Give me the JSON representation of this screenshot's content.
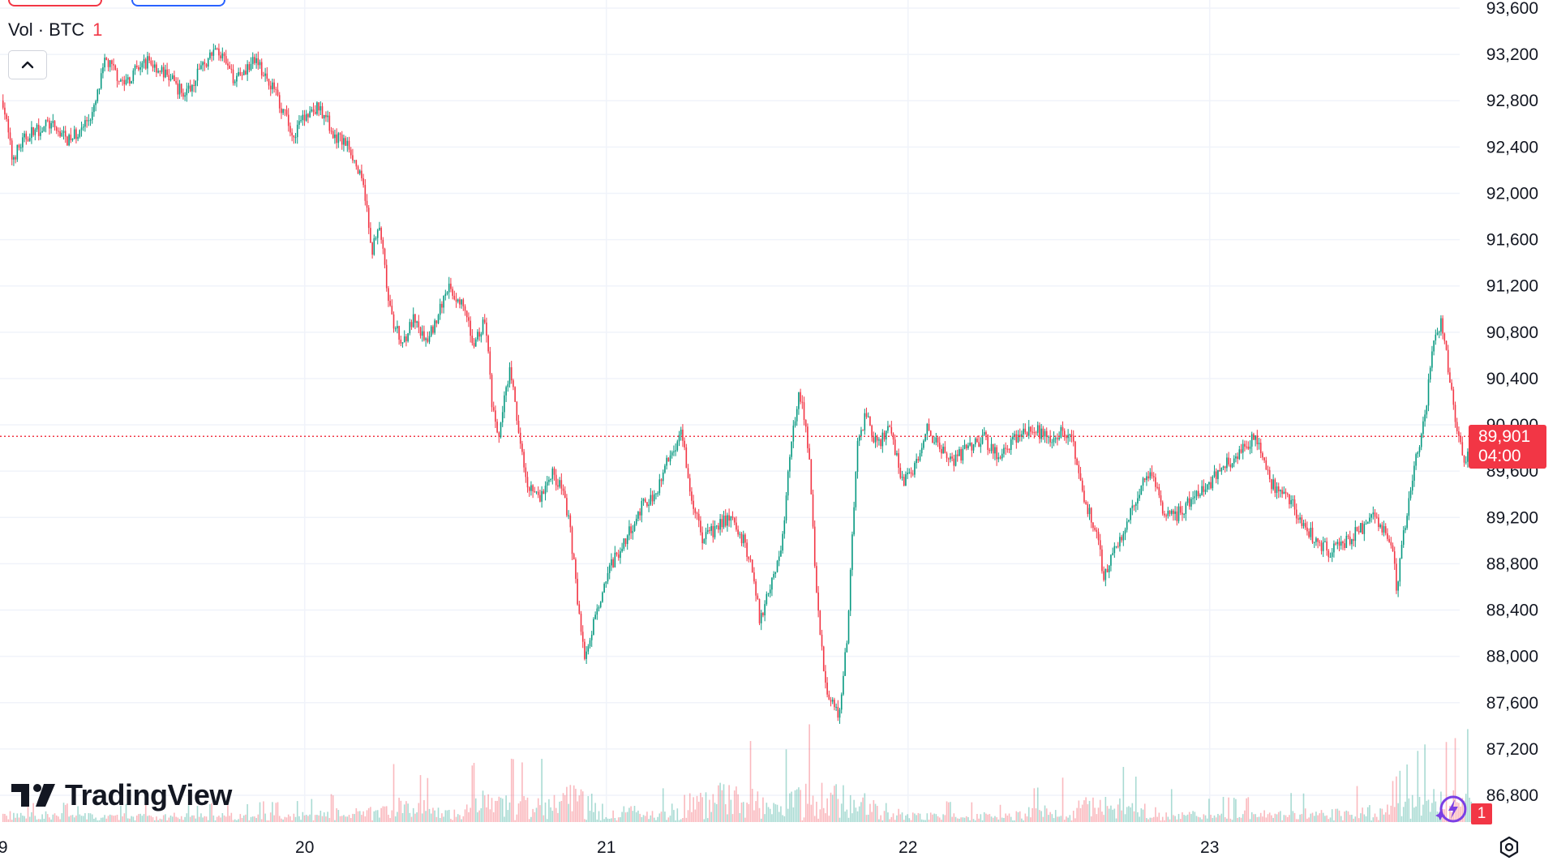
{
  "chart_data": {
    "type": "candlestick",
    "symbol": "BTC",
    "legend_label": "Vol · BTC",
    "legend_count": "1",
    "ylim": [
      86600,
      93600
    ],
    "y_ticks": [
      "86,800",
      "87,200",
      "87,600",
      "88,000",
      "88,400",
      "88,800",
      "89,200",
      "89,600",
      "90,000",
      "90,400",
      "90,800",
      "91,200",
      "91,600",
      "92,000",
      "92,400",
      "92,800",
      "93,200",
      "93,600"
    ],
    "x_ticks": [
      {
        "label": "9",
        "day": 19
      },
      {
        "label": "20",
        "day": 20
      },
      {
        "label": "21",
        "day": 21
      },
      {
        "label": "22",
        "day": 22
      },
      {
        "label": "23",
        "day": 23
      }
    ],
    "x_range_days": [
      19.0,
      23.95
    ],
    "grid": true,
    "current_price": "89,901",
    "countdown": "04:00",
    "current_price_value": 89901,
    "price_path": [
      {
        "day": 19.0,
        "price": 92800
      },
      {
        "day": 19.03,
        "price": 92300
      },
      {
        "day": 19.08,
        "price": 92500
      },
      {
        "day": 19.15,
        "price": 92600
      },
      {
        "day": 19.22,
        "price": 92450
      },
      {
        "day": 19.3,
        "price": 92700
      },
      {
        "day": 19.34,
        "price": 93150
      },
      {
        "day": 19.4,
        "price": 92950
      },
      {
        "day": 19.48,
        "price": 93150
      },
      {
        "day": 19.55,
        "price": 93000
      },
      {
        "day": 19.6,
        "price": 92850
      },
      {
        "day": 19.66,
        "price": 93100
      },
      {
        "day": 19.71,
        "price": 93250
      },
      {
        "day": 19.76,
        "price": 93000
      },
      {
        "day": 19.84,
        "price": 93150
      },
      {
        "day": 19.9,
        "price": 92900
      },
      {
        "day": 19.96,
        "price": 92500
      },
      {
        "day": 20.0,
        "price": 92650
      },
      {
        "day": 20.05,
        "price": 92750
      },
      {
        "day": 20.1,
        "price": 92500
      },
      {
        "day": 20.15,
        "price": 92400
      },
      {
        "day": 20.2,
        "price": 92000
      },
      {
        "day": 20.22,
        "price": 91500
      },
      {
        "day": 20.25,
        "price": 91700
      },
      {
        "day": 20.28,
        "price": 91000
      },
      {
        "day": 20.32,
        "price": 90700
      },
      {
        "day": 20.36,
        "price": 90900
      },
      {
        "day": 20.4,
        "price": 90700
      },
      {
        "day": 20.45,
        "price": 91000
      },
      {
        "day": 20.47,
        "price": 91200
      },
      {
        "day": 20.52,
        "price": 91050
      },
      {
        "day": 20.56,
        "price": 90700
      },
      {
        "day": 20.6,
        "price": 90900
      },
      {
        "day": 20.62,
        "price": 90200
      },
      {
        "day": 20.64,
        "price": 89850
      },
      {
        "day": 20.68,
        "price": 90500
      },
      {
        "day": 20.71,
        "price": 89900
      },
      {
        "day": 20.74,
        "price": 89500
      },
      {
        "day": 20.78,
        "price": 89350
      },
      {
        "day": 20.82,
        "price": 89600
      },
      {
        "day": 20.86,
        "price": 89400
      },
      {
        "day": 20.88,
        "price": 89100
      },
      {
        "day": 20.9,
        "price": 88600
      },
      {
        "day": 20.93,
        "price": 87950
      },
      {
        "day": 20.96,
        "price": 88300
      },
      {
        "day": 21.0,
        "price": 88700
      },
      {
        "day": 21.04,
        "price": 88900
      },
      {
        "day": 21.08,
        "price": 89100
      },
      {
        "day": 21.12,
        "price": 89300
      },
      {
        "day": 21.16,
        "price": 89400
      },
      {
        "day": 21.19,
        "price": 89600
      },
      {
        "day": 21.25,
        "price": 89950
      },
      {
        "day": 21.28,
        "price": 89400
      },
      {
        "day": 21.32,
        "price": 89000
      },
      {
        "day": 21.36,
        "price": 89100
      },
      {
        "day": 21.4,
        "price": 89200
      },
      {
        "day": 21.44,
        "price": 89100
      },
      {
        "day": 21.48,
        "price": 88800
      },
      {
        "day": 21.51,
        "price": 88300
      },
      {
        "day": 21.55,
        "price": 88700
      },
      {
        "day": 21.58,
        "price": 88900
      },
      {
        "day": 21.61,
        "price": 89800
      },
      {
        "day": 21.64,
        "price": 90300
      },
      {
        "day": 21.67,
        "price": 89800
      },
      {
        "day": 21.7,
        "price": 88400
      },
      {
        "day": 21.73,
        "price": 87700
      },
      {
        "day": 21.77,
        "price": 87500
      },
      {
        "day": 21.8,
        "price": 88200
      },
      {
        "day": 21.83,
        "price": 89800
      },
      {
        "day": 21.86,
        "price": 90100
      },
      {
        "day": 21.9,
        "price": 89800
      },
      {
        "day": 21.94,
        "price": 90000
      },
      {
        "day": 21.98,
        "price": 89500
      },
      {
        "day": 22.02,
        "price": 89600
      },
      {
        "day": 22.06,
        "price": 90000
      },
      {
        "day": 22.1,
        "price": 89800
      },
      {
        "day": 22.15,
        "price": 89700
      },
      {
        "day": 22.2,
        "price": 89800
      },
      {
        "day": 22.25,
        "price": 89900
      },
      {
        "day": 22.3,
        "price": 89700
      },
      {
        "day": 22.36,
        "price": 89900
      },
      {
        "day": 22.42,
        "price": 89950
      },
      {
        "day": 22.48,
        "price": 89900
      },
      {
        "day": 22.54,
        "price": 89950
      },
      {
        "day": 22.58,
        "price": 89400
      },
      {
        "day": 22.62,
        "price": 89100
      },
      {
        "day": 22.65,
        "price": 88700
      },
      {
        "day": 22.68,
        "price": 88900
      },
      {
        "day": 22.72,
        "price": 89100
      },
      {
        "day": 22.76,
        "price": 89400
      },
      {
        "day": 22.8,
        "price": 89600
      },
      {
        "day": 22.84,
        "price": 89300
      },
      {
        "day": 22.88,
        "price": 89200
      },
      {
        "day": 22.92,
        "price": 89300
      },
      {
        "day": 22.96,
        "price": 89400
      },
      {
        "day": 23.0,
        "price": 89500
      },
      {
        "day": 23.05,
        "price": 89650
      },
      {
        "day": 23.1,
        "price": 89750
      },
      {
        "day": 23.15,
        "price": 89900
      },
      {
        "day": 23.2,
        "price": 89500
      },
      {
        "day": 23.25,
        "price": 89400
      },
      {
        "day": 23.3,
        "price": 89200
      },
      {
        "day": 23.35,
        "price": 89000
      },
      {
        "day": 23.4,
        "price": 88900
      },
      {
        "day": 23.44,
        "price": 88950
      },
      {
        "day": 23.5,
        "price": 89100
      },
      {
        "day": 23.55,
        "price": 89200
      },
      {
        "day": 23.6,
        "price": 89000
      },
      {
        "day": 23.62,
        "price": 88600
      },
      {
        "day": 23.65,
        "price": 89200
      },
      {
        "day": 23.68,
        "price": 89700
      },
      {
        "day": 23.71,
        "price": 90000
      },
      {
        "day": 23.74,
        "price": 90700
      },
      {
        "day": 23.77,
        "price": 90900
      },
      {
        "day": 23.8,
        "price": 90300
      },
      {
        "day": 23.83,
        "price": 89800
      },
      {
        "day": 23.85,
        "price": 89700
      },
      {
        "day": 23.87,
        "price": 89900
      }
    ],
    "volume_profile": [
      {
        "day": 19.0,
        "level": 0.2
      },
      {
        "day": 19.25,
        "level": 0.15
      },
      {
        "day": 19.5,
        "level": 0.15
      },
      {
        "day": 19.75,
        "level": 0.15
      },
      {
        "day": 20.0,
        "level": 0.2
      },
      {
        "day": 20.2,
        "level": 0.3
      },
      {
        "day": 20.3,
        "level": 0.55
      },
      {
        "day": 20.5,
        "level": 0.3
      },
      {
        "day": 20.6,
        "level": 0.7
      },
      {
        "day": 20.75,
        "level": 0.5
      },
      {
        "day": 20.9,
        "level": 0.9
      },
      {
        "day": 21.0,
        "level": 0.35
      },
      {
        "day": 21.2,
        "level": 0.3
      },
      {
        "day": 21.32,
        "level": 0.9
      },
      {
        "day": 21.45,
        "level": 0.85
      },
      {
        "day": 21.55,
        "level": 0.5
      },
      {
        "day": 21.63,
        "level": 0.8
      },
      {
        "day": 21.7,
        "level": 1.0
      },
      {
        "day": 21.78,
        "level": 0.85
      },
      {
        "day": 21.9,
        "level": 0.45
      },
      {
        "day": 22.0,
        "level": 0.2
      },
      {
        "day": 22.3,
        "level": 0.15
      },
      {
        "day": 22.55,
        "level": 0.45
      },
      {
        "day": 22.65,
        "level": 0.6
      },
      {
        "day": 22.8,
        "level": 0.35
      },
      {
        "day": 23.0,
        "level": 0.2
      },
      {
        "day": 23.3,
        "level": 0.25
      },
      {
        "day": 23.6,
        "level": 0.35
      },
      {
        "day": 23.7,
        "level": 0.7
      },
      {
        "day": 23.8,
        "level": 0.75
      },
      {
        "day": 23.87,
        "level": 0.9
      }
    ]
  },
  "branding": {
    "wordmark": "TradingView"
  },
  "alerts": {
    "badge_count": "1"
  },
  "colors": {
    "up": "#089981",
    "down": "#f23645",
    "grid": "#f0f3fa",
    "text": "#131722"
  },
  "icons": [
    "chevron-up-icon",
    "tradingview-logo-icon",
    "alert-lightning-icon",
    "settings-icon"
  ]
}
